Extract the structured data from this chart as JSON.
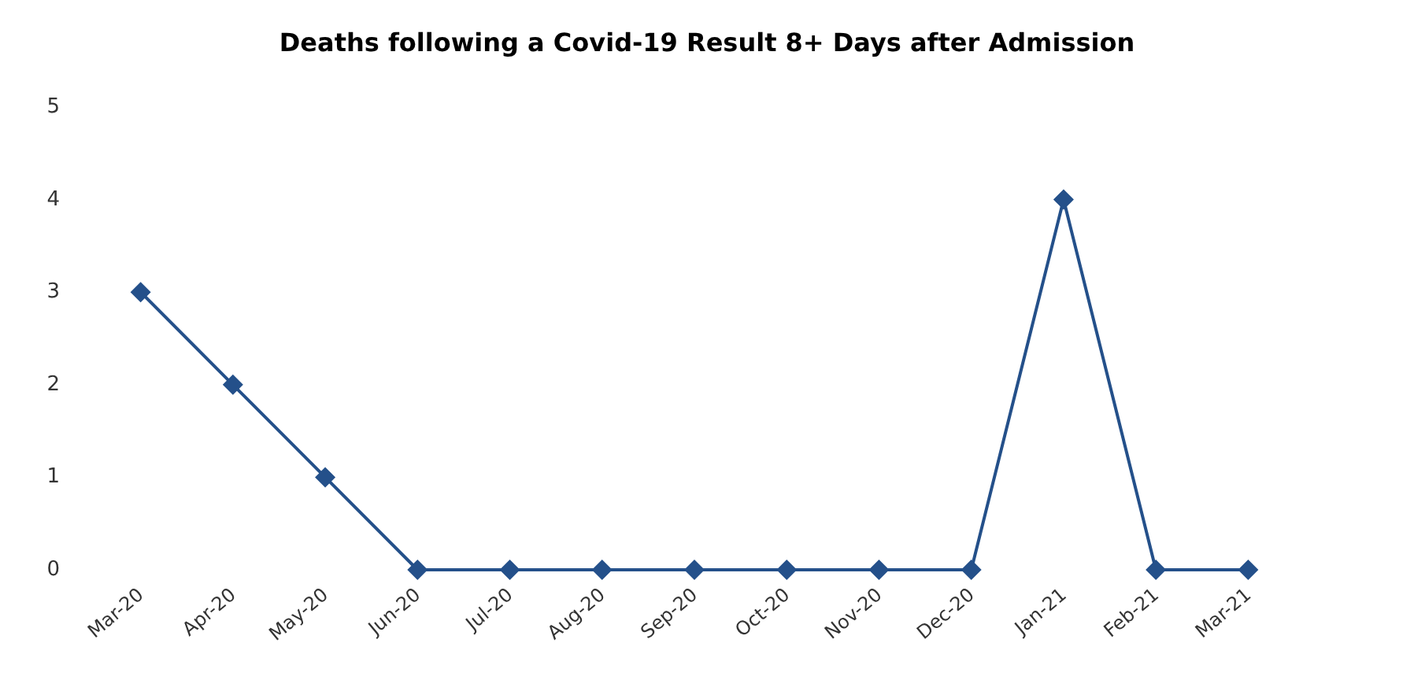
{
  "chart_data": {
    "type": "line",
    "title": "Deaths following a Covid-19 Result 8+ Days after Admission",
    "categories": [
      "Mar-20",
      "Apr-20",
      "May-20",
      "Jun-20",
      "Jul-20",
      "Aug-20",
      "Sep-20",
      "Oct-20",
      "Nov-20",
      "Dec-20",
      "Jan-21",
      "Feb-21",
      "Mar-21"
    ],
    "series": [
      {
        "color": "#24508a",
        "values": [
          3,
          2,
          1,
          0,
          0,
          0,
          0,
          0,
          0,
          0,
          4,
          0,
          0
        ]
      }
    ],
    "ylim": [
      0,
      5
    ],
    "yticks": [
      0,
      1,
      2,
      3,
      4,
      5
    ],
    "grid": false,
    "legend": false,
    "marker": "diamond",
    "line_style": "solid"
  }
}
